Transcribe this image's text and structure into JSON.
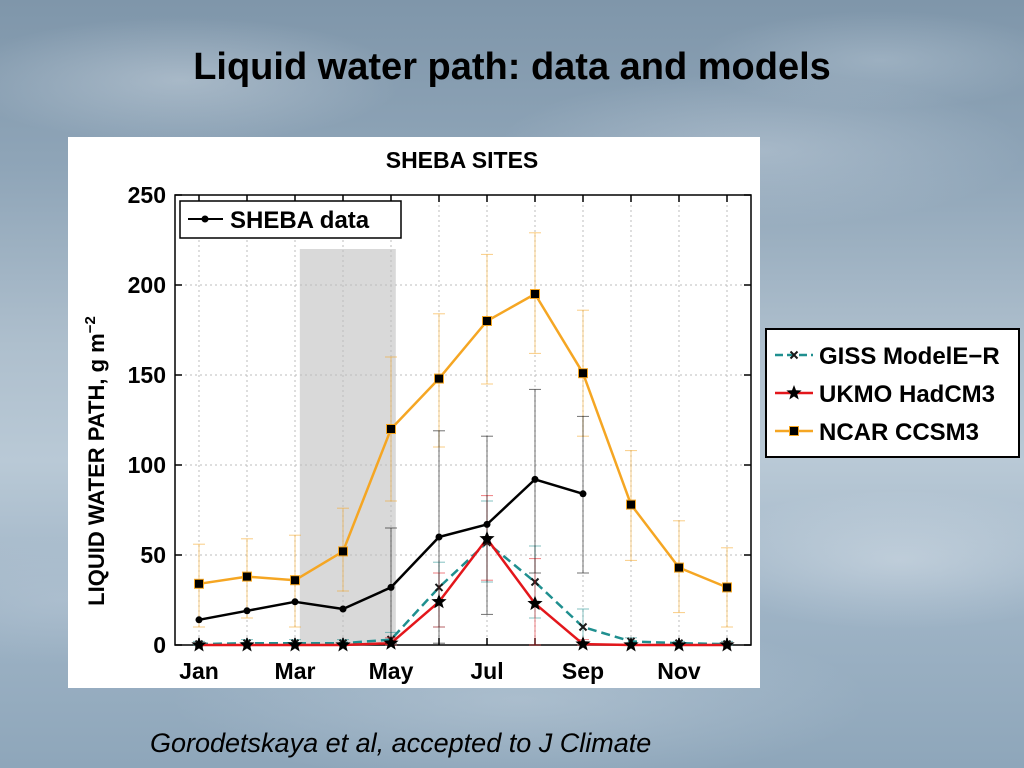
{
  "slide": {
    "title": "Liquid water path: data and models",
    "citation": "Gorodetskaya et al, accepted to J Climate"
  },
  "chart_data": {
    "type": "line",
    "title": "SHEBA SITES",
    "xlabel": "",
    "ylabel_main": "LIQUID WATER PATH, g m",
    "ylabel_sup": "−2",
    "ylim": [
      0,
      250
    ],
    "yticks": [
      0,
      50,
      100,
      150,
      200,
      250
    ],
    "x": [
      1,
      2,
      3,
      4,
      5,
      6,
      7,
      8,
      9,
      10,
      11,
      12
    ],
    "xtick_labels": [
      {
        "x": 1,
        "label": "Jan"
      },
      {
        "x": 3,
        "label": "Mar"
      },
      {
        "x": 5,
        "label": "May"
      },
      {
        "x": 7,
        "label": "Jul"
      },
      {
        "x": 9,
        "label": "Sep"
      },
      {
        "x": 11,
        "label": "Nov"
      }
    ],
    "shaded_region": {
      "x_start": 3.1,
      "x_end": 5.1,
      "y_max": 220,
      "color": "#d9d9d9"
    },
    "grid": true,
    "series": [
      {
        "name": "SHEBA data",
        "color": "#000000",
        "marker": "circle",
        "legend": "inner-top-left",
        "x": [
          1,
          2,
          3,
          4,
          5,
          6,
          7,
          8,
          9
        ],
        "y": [
          14,
          19,
          24,
          20,
          32,
          60,
          67,
          92,
          84
        ],
        "err_low": [
          14,
          19,
          24,
          20,
          1,
          1,
          17,
          40,
          40
        ],
        "err_high": [
          14,
          19,
          24,
          20,
          65,
          119,
          116,
          142,
          127
        ]
      },
      {
        "name": "GISS ModelE−R",
        "color": "#1f8f8f",
        "marker": "x",
        "dash": true,
        "legend": "outer-right",
        "x": [
          1,
          2,
          3,
          4,
          5,
          6,
          7,
          8,
          9,
          10,
          11,
          12
        ],
        "y": [
          0.5,
          1,
          1,
          1,
          3,
          32,
          57,
          35,
          10,
          2,
          1,
          0.5
        ],
        "err_low": [
          0,
          0,
          0,
          0,
          0,
          10,
          35,
          15,
          0,
          0,
          0,
          0
        ],
        "err_high": [
          2,
          3,
          3,
          3,
          7,
          46,
          80,
          55,
          20,
          4,
          2,
          2
        ]
      },
      {
        "name": "UKMO HadCM3",
        "color": "#e3161b",
        "marker": "star",
        "legend": "outer-right",
        "x": [
          1,
          2,
          3,
          4,
          5,
          6,
          7,
          8,
          9,
          10,
          11,
          12
        ],
        "y": [
          0,
          0,
          0,
          0,
          1,
          24,
          59,
          23,
          0.5,
          0,
          0,
          0
        ],
        "err_low": [
          0,
          0,
          0,
          0,
          0,
          10,
          36,
          0,
          0,
          0,
          0,
          0
        ],
        "err_high": [
          0,
          0,
          0,
          0,
          4,
          40,
          83,
          48,
          3,
          0,
          0,
          0
        ]
      },
      {
        "name": "NCAR CCSM3",
        "color": "#f5a623",
        "marker": "square",
        "legend": "outer-right",
        "x": [
          1,
          2,
          3,
          4,
          5,
          6,
          7,
          8,
          9,
          10,
          11,
          12
        ],
        "y": [
          34,
          38,
          36,
          52,
          120,
          148,
          180,
          195,
          151,
          78,
          43,
          32
        ],
        "err_low": [
          10,
          15,
          10,
          30,
          80,
          110,
          145,
          162,
          116,
          47,
          18,
          10
        ],
        "err_high": [
          56,
          59,
          61,
          76,
          160,
          184,
          217,
          229,
          186,
          108,
          69,
          54
        ]
      }
    ]
  }
}
